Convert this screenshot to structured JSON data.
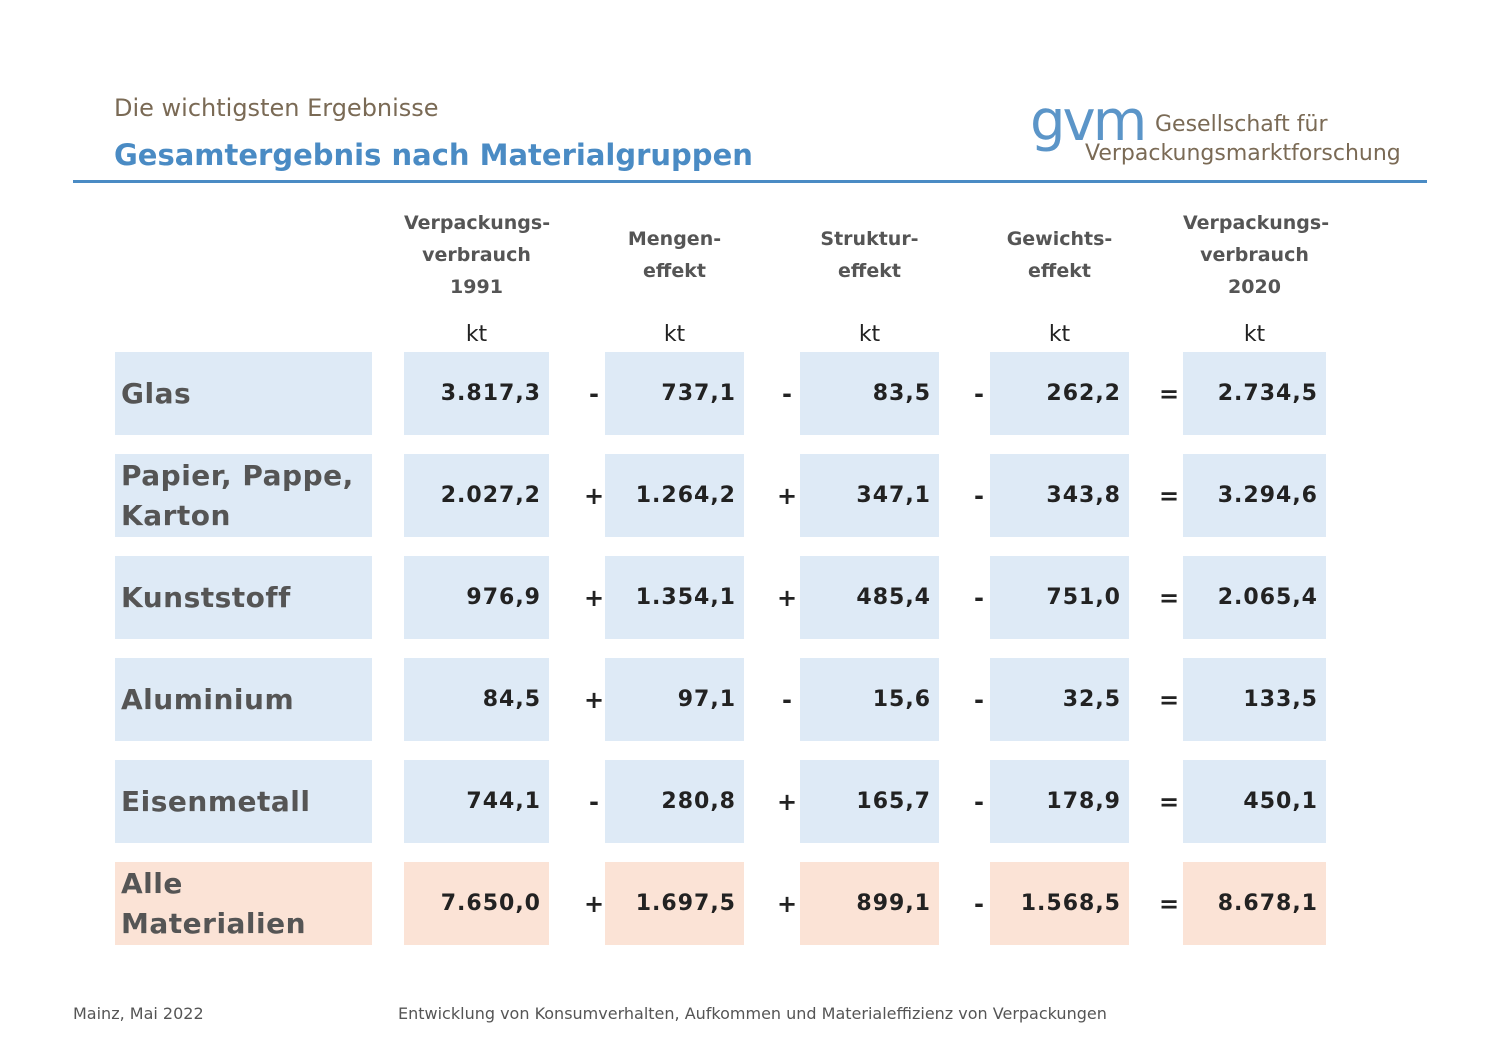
{
  "header": {
    "subtitle": "Die wichtigsten Ergebnisse",
    "title": "Gesamtergebnis nach Materialgruppen",
    "rule_color": "#4a8bc4"
  },
  "logo": {
    "mark": "gvm",
    "line1": "Gesellschaft für",
    "line2": "Verpackungsmarktforschung"
  },
  "columns": [
    {
      "lines": [
        "Verpackungs-",
        "verbrauch",
        "1991"
      ],
      "unit": "kt"
    },
    {
      "lines": [
        "Mengen-",
        "effekt"
      ],
      "unit": "kt"
    },
    {
      "lines": [
        "Struktur-",
        "effekt"
      ],
      "unit": "kt"
    },
    {
      "lines": [
        "Gewichts-",
        "effekt"
      ],
      "unit": "kt"
    },
    {
      "lines": [
        "Verpackungs-",
        "verbrauch",
        "2020"
      ],
      "unit": "kt"
    }
  ],
  "rows": [
    {
      "label": "Glas",
      "values": [
        "3.817,3",
        "737,1",
        "83,5",
        "262,2",
        "2.734,5"
      ],
      "ops": [
        "-",
        "-",
        "-",
        "="
      ]
    },
    {
      "label": "Papier, Pappe, Karton",
      "values": [
        "2.027,2",
        "1.264,2",
        "347,1",
        "343,8",
        "3.294,6"
      ],
      "ops": [
        "+",
        "+",
        "-",
        "="
      ]
    },
    {
      "label": "Kunststoff",
      "values": [
        "976,9",
        "1.354,1",
        "485,4",
        "751,0",
        "2.065,4"
      ],
      "ops": [
        "+",
        "+",
        "-",
        "="
      ]
    },
    {
      "label": "Aluminium",
      "values": [
        "84,5",
        "97,1",
        "15,6",
        "32,5",
        "133,5"
      ],
      "ops": [
        "+",
        "-",
        "-",
        "="
      ]
    },
    {
      "label": "Eisenmetall",
      "values": [
        "744,1",
        "280,8",
        "165,7",
        "178,9",
        "450,1"
      ],
      "ops": [
        "-",
        "+",
        "-",
        "="
      ]
    },
    {
      "label": "Alle Materialien",
      "values": [
        "7.650,0",
        "1.697,5",
        "899,1",
        "1.568,5",
        "8.678,1"
      ],
      "ops": [
        "+",
        "+",
        "-",
        "="
      ],
      "total": true
    }
  ],
  "colors": {
    "cell_blue": "#deeaf6",
    "cell_peach": "#fbe3d6",
    "title_blue": "#4a8bc4",
    "brown_text": "#7a6a55"
  },
  "footer": {
    "left": "Mainz, Mai 2022",
    "center": "Entwicklung von Konsumverhalten, Aufkommen und Materialeffizienz von Verpackungen"
  }
}
